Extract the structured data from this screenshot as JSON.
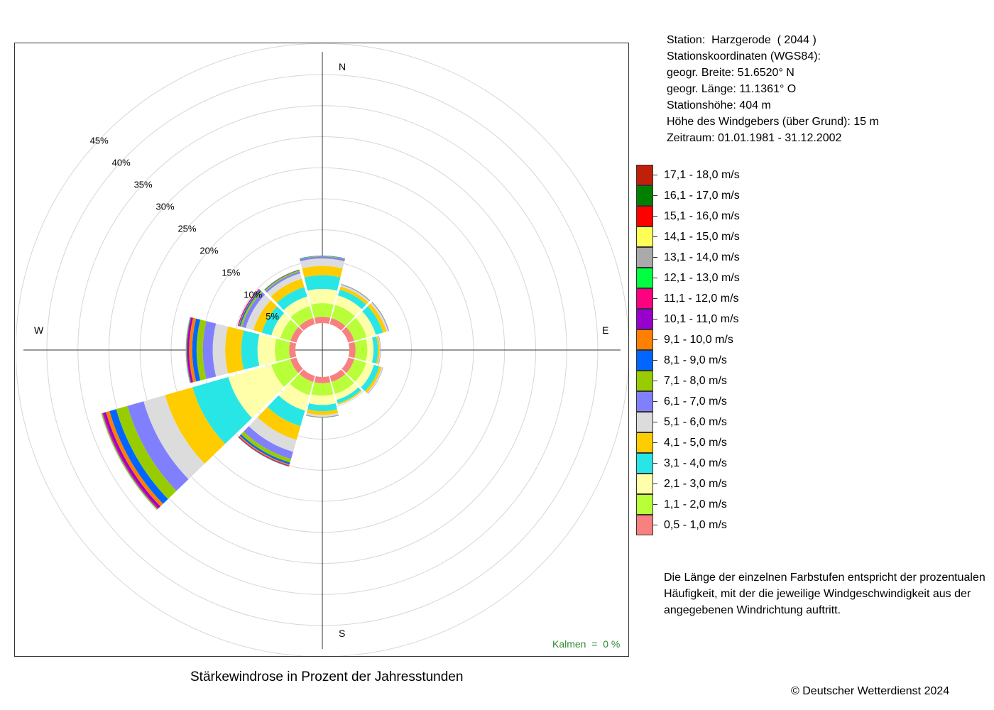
{
  "chart_data": {
    "type": "windrose",
    "title": "Stärkewindrose in Prozent der Jahresstunden",
    "compass": {
      "north": "N",
      "east": "E",
      "south": "S",
      "west": "W"
    },
    "ring_labels": [
      "5%",
      "10%",
      "15%",
      "20%",
      "25%",
      "30%",
      "35%",
      "40%",
      "45%"
    ],
    "ring_values": [
      5,
      10,
      15,
      20,
      25,
      30,
      35,
      40,
      45
    ],
    "calms_text": "Kalmen  =  0 %",
    "legend_title": "",
    "bins": [
      {
        "label": "0,5 - 1,0 m/s",
        "color": "#f88080"
      },
      {
        "label": "1,1 - 2,0 m/s",
        "color": "#b8ff3a"
      },
      {
        "label": "2,1 - 3,0 m/s",
        "color": "#ffffaa"
      },
      {
        "label": "3,1 - 4,0 m/s",
        "color": "#28e6e6"
      },
      {
        "label": "4,1 - 5,0 m/s",
        "color": "#ffcc00"
      },
      {
        "label": "5,1 - 6,0 m/s",
        "color": "#dcdcdc"
      },
      {
        "label": "6,1 - 7,0 m/s",
        "color": "#8080ff"
      },
      {
        "label": "7,1 - 8,0 m/s",
        "color": "#99cc00"
      },
      {
        "label": "8,1 - 9,0 m/s",
        "color": "#0066ff"
      },
      {
        "label": "9,1 - 10,0 m/s",
        "color": "#ff8000"
      },
      {
        "label": "10,1 - 11,0 m/s",
        "color": "#9900cc"
      },
      {
        "label": "11,1 - 12,0 m/s",
        "color": "#ff0080"
      },
      {
        "label": "12,1 - 13,0 m/s",
        "color": "#00ff40"
      },
      {
        "label": "13,1 - 14,0 m/s",
        "color": "#aaaaaa"
      },
      {
        "label": "14,1 - 15,0 m/s",
        "color": "#ffff55"
      },
      {
        "label": "15,1 - 16,0 m/s",
        "color": "#ff0000"
      },
      {
        "label": "16,1 - 17,0 m/s",
        "color": "#008000"
      },
      {
        "label": "17,1 - 18,0 m/s",
        "color": "#c0200a"
      }
    ],
    "directions": [
      {
        "deg": 0,
        "values": [
          1.0,
          2.2,
          2.3,
          2.2,
          1.5,
          1.2,
          0.3,
          0.1,
          0.05
        ]
      },
      {
        "deg": 30,
        "values": [
          1.0,
          2.2,
          1.6,
          1.0,
          0.5,
          0.3,
          0.1,
          0.05
        ]
      },
      {
        "deg": 60,
        "values": [
          1.0,
          2.1,
          1.5,
          1.2,
          0.6,
          0.3,
          0.1,
          0.05
        ]
      },
      {
        "deg": 90,
        "values": [
          1.0,
          1.9,
          1.0,
          0.7,
          0.3,
          0.1,
          0.05
        ]
      },
      {
        "deg": 120,
        "values": [
          1.0,
          2.0,
          1.3,
          0.9,
          0.4,
          0.2,
          0.05
        ]
      },
      {
        "deg": 150,
        "values": [
          1.0,
          2.0,
          1.0,
          0.6,
          0.2,
          0.05
        ]
      },
      {
        "deg": 180,
        "values": [
          1.0,
          2.0,
          1.5,
          1.0,
          0.6,
          0.3,
          0.1,
          0.05
        ]
      },
      {
        "deg": 210,
        "values": [
          1.0,
          2.2,
          2.6,
          2.6,
          2.3,
          2.0,
          1.2,
          0.6,
          0.3,
          0.2,
          0.1,
          0.05,
          0.05
        ]
      },
      {
        "deg": 240,
        "values": [
          1.0,
          3.2,
          7.2,
          6.0,
          4.6,
          3.6,
          2.7,
          1.9,
          1.1,
          0.6,
          0.4,
          0.2,
          0.1,
          0.1,
          0.05
        ]
      },
      {
        "deg": 270,
        "values": [
          1.0,
          2.3,
          2.8,
          2.6,
          2.6,
          2.0,
          1.6,
          1.0,
          0.7,
          0.5,
          0.3,
          0.1,
          0.1,
          0.05
        ]
      },
      {
        "deg": 300,
        "values": [
          1.0,
          1.7,
          1.5,
          1.6,
          1.4,
          1.3,
          0.6,
          0.3,
          0.2,
          0.1,
          0.1,
          0.05
        ]
      },
      {
        "deg": 330,
        "values": [
          1.0,
          2.0,
          1.6,
          1.6,
          1.4,
          0.9,
          0.3,
          0.2,
          0.1,
          0.05
        ]
      }
    ]
  },
  "station": {
    "line1": "Station:  Harzgerode  ( 2044 )",
    "line2": "Stationskoordinaten (WGS84):",
    "line3": "geogr. Breite: 51.6520° N",
    "line4": "geogr. Länge: 11.1361° O",
    "line5": "Stationshöhe: 404 m",
    "line6": "Höhe des Windgebers (über Grund): 15 m",
    "line7": "Zeitraum: 01.01.1981 - 31.12.2002"
  },
  "note": "Die Länge der einzelnen Farbstufen entspricht der prozentualen Häufigkeit, mit der die jeweilige Windgeschwindigkeit aus der angegebenen Windrichtung auftritt.",
  "copyright": "© Deutscher Wetterdienst  2024"
}
